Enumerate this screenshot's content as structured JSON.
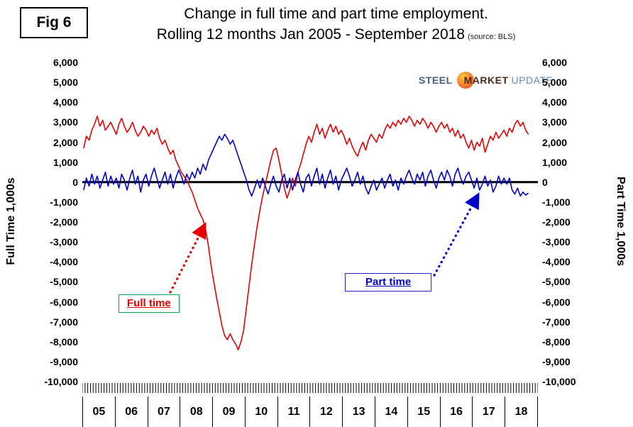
{
  "figure_label": "Fig 6",
  "title": {
    "line1": "Change in full time and part time employment.",
    "line2": "Rolling 12 months Jan 2005 - September 2018",
    "source": "(source: BLS)"
  },
  "logo": {
    "steel": "STEEL",
    "market": "MARKET",
    "update": "UPDATE"
  },
  "axes": {
    "left_label": "Full Time 1,000s",
    "right_label": "Part Time 1,000s",
    "y_ticks": [
      "6,000",
      "5,000",
      "4,000",
      "3,000",
      "2,000",
      "1,000",
      "0",
      "-1,000",
      "-2,000",
      "-3,000",
      "-4,000",
      "-5,000",
      "-6,000",
      "-7,000",
      "-8,000",
      "-9,000",
      "-10,000"
    ],
    "x_years": [
      "05",
      "06",
      "07",
      "08",
      "09",
      "10",
      "11",
      "12",
      "13",
      "14",
      "15",
      "16",
      "17",
      "18"
    ]
  },
  "annotations": {
    "full_time_label": "Full time",
    "part_time_label": "Part time"
  },
  "colors": {
    "full_time": "#e60000",
    "part_time": "#0000cc",
    "zero_line": "#000000",
    "full_time_box_border": "#00a550",
    "part_time_box_border": "#2222cc"
  },
  "chart_data": {
    "type": "line",
    "title": "Change in full time and part time employment. Rolling 12 months Jan 2005 - September 2018",
    "x_start": "2005-01",
    "x_end": "2018-09",
    "x_axis_total_months": 168,
    "ylim": [
      -10000,
      6000
    ],
    "y_tick_step": 1000,
    "ylabel_left": "Full Time 1,000s",
    "ylabel_right": "Part Time 1,000s",
    "legend_position": "annotated-boxes",
    "grid": false,
    "series": [
      {
        "name": "Full time",
        "color": "#e60000",
        "values": [
          1700,
          2300,
          2100,
          2600,
          2900,
          3300,
          2800,
          3100,
          2600,
          2800,
          3000,
          2700,
          2400,
          2900,
          3200,
          2800,
          2500,
          2700,
          3000,
          2600,
          2300,
          2500,
          2800,
          2600,
          2300,
          2600,
          2400,
          2700,
          2200,
          1900,
          2100,
          1700,
          1400,
          1600,
          1100,
          800,
          500,
          300,
          100,
          -200,
          -500,
          -900,
          -1300,
          -1600,
          -1900,
          -2400,
          -3200,
          -4200,
          -5000,
          -5800,
          -6500,
          -7200,
          -7700,
          -7900,
          -7600,
          -7900,
          -8100,
          -8400,
          -8000,
          -7400,
          -6300,
          -5200,
          -4100,
          -3100,
          -2200,
          -1400,
          -700,
          -100,
          500,
          1100,
          1600,
          1700,
          1100,
          400,
          -300,
          -800,
          -400,
          200,
          -200,
          500,
          900,
          1400,
          1900,
          2300,
          2000,
          2500,
          2900,
          2400,
          2700,
          2200,
          2600,
          2900,
          2500,
          2800,
          2400,
          2600,
          2300,
          1900,
          2200,
          1800,
          1500,
          1300,
          1700,
          2000,
          1600,
          2100,
          2400,
          2200,
          2000,
          2400,
          2200,
          2600,
          2900,
          2700,
          3000,
          2800,
          3100,
          2900,
          3200,
          3000,
          3300,
          3100,
          2800,
          3100,
          2900,
          3200,
          3000,
          2700,
          3000,
          2800,
          2500,
          2800,
          3000,
          2700,
          2900,
          2500,
          2700,
          2300,
          2600,
          2200,
          2400,
          2000,
          1700,
          2100,
          1600,
          2000,
          1800,
          2200,
          1500,
          1900,
          2300,
          2100,
          2500,
          2200,
          2400,
          2600,
          2300,
          2700,
          2500,
          2900,
          3100,
          2800,
          3000,
          2600,
          2400
        ]
      },
      {
        "name": "Part time",
        "color": "#0000cc",
        "values": [
          -400,
          200,
          -200,
          400,
          -100,
          300,
          -300,
          100,
          500,
          -200,
          300,
          -100,
          200,
          -300,
          400,
          100,
          -400,
          200,
          600,
          -100,
          300,
          -500,
          100,
          400,
          -200,
          300,
          700,
          200,
          -300,
          100,
          500,
          -100,
          400,
          -300,
          200,
          600,
          300,
          -100,
          400,
          100,
          500,
          200,
          700,
          400,
          900,
          600,
          1100,
          1400,
          1700,
          2000,
          2300,
          2100,
          2400,
          2200,
          1900,
          2100,
          1700,
          1300,
          900,
          500,
          100,
          -400,
          -700,
          -300,
          100,
          -300,
          200,
          -200,
          -600,
          -100,
          300,
          -200,
          -500,
          100,
          400,
          -300,
          200,
          -400,
          100,
          500,
          -100,
          -500,
          200,
          400,
          -200,
          300,
          700,
          -100,
          400,
          -300,
          200,
          600,
          -100,
          300,
          -400,
          100,
          400,
          700,
          300,
          -200,
          100,
          500,
          -100,
          300,
          -300,
          -600,
          -200,
          100,
          -400,
          -100,
          200,
          -300,
          100,
          400,
          -200,
          100,
          -400,
          200,
          -100,
          300,
          600,
          200,
          -100,
          400,
          100,
          500,
          -200,
          300,
          600,
          100,
          -300,
          200,
          500,
          100,
          600,
          300,
          -200,
          400,
          700,
          200,
          -100,
          300,
          500,
          100,
          -300,
          200,
          -400,
          -100,
          300,
          -200,
          100,
          -500,
          -200,
          300,
          -100,
          200,
          -100,
          200,
          -400,
          -600,
          -300,
          -700,
          -500,
          -650,
          -550
        ]
      }
    ]
  }
}
